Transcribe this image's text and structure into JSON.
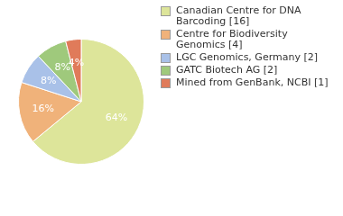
{
  "chart_data": {
    "type": "pie",
    "categories": [
      "Canadian Centre for DNA Barcoding [16]",
      "Centre for Biodiversity Genomics [4]",
      "LGC Genomics, Germany [2]",
      "GATC Biotech AG [2]",
      "Mined from GenBank, NCBI [1]"
    ],
    "values": [
      64,
      16,
      8,
      8,
      4
    ],
    "value_labels": [
      "64%",
      "16%",
      "8%",
      "8%",
      "4%"
    ],
    "colors": [
      "#dde59a",
      "#f0b27a",
      "#a9c1e8",
      "#9fc97c",
      "#e07b5a"
    ],
    "data_labels": true,
    "legend": "right"
  }
}
